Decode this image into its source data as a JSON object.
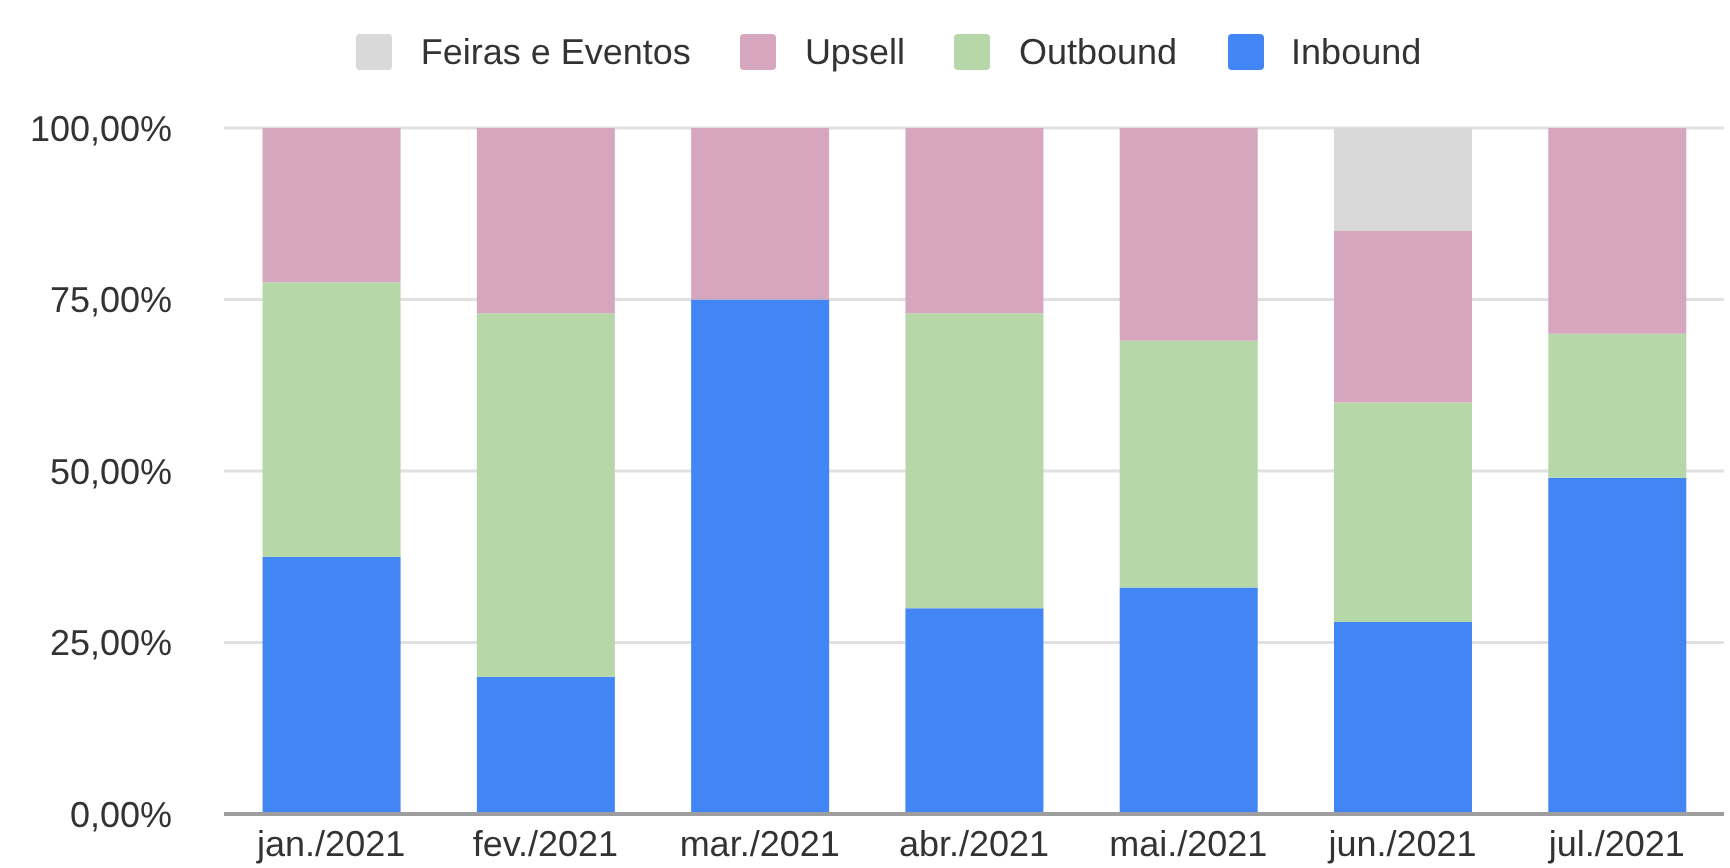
{
  "chart_data": {
    "type": "bar",
    "stacked": true,
    "categories": [
      "jan./2021",
      "fev./2021",
      "mar./2021",
      "abr./2021",
      "mai./2021",
      "jun./2021",
      "jul./2021"
    ],
    "series": [
      {
        "name": "Inbound",
        "color": "#4285f4",
        "values": [
          37.5,
          20,
          75,
          30,
          33,
          28,
          49
        ]
      },
      {
        "name": "Outbound",
        "color": "#b6d7a8",
        "values": [
          40,
          53,
          null,
          43,
          36,
          32,
          21
        ]
      },
      {
        "name": "Upsell",
        "color": "#d5a6bd",
        "values": [
          22.5,
          27,
          25,
          27,
          31,
          25,
          30
        ]
      },
      {
        "name": "Feiras e Eventos",
        "color": "#d9d9d9",
        "values": [
          null,
          null,
          null,
          null,
          null,
          15,
          null
        ]
      }
    ],
    "ylim": [
      0,
      100
    ],
    "yticks": [
      {
        "value": 0,
        "label": "0,00%"
      },
      {
        "value": 25,
        "label": "25,00%"
      },
      {
        "value": 50,
        "label": "50,00%"
      },
      {
        "value": 75,
        "label": "75,00%"
      },
      {
        "value": 100,
        "label": "100,00%"
      }
    ],
    "grid": "y",
    "legend": "top"
  }
}
